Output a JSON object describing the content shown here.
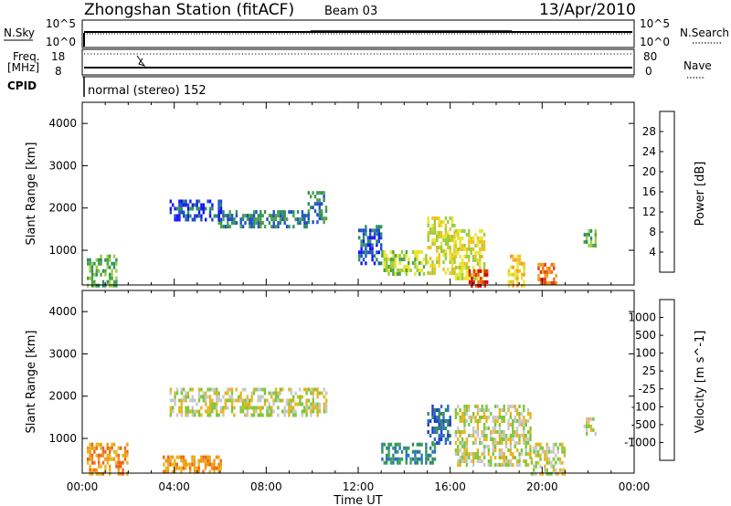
{
  "header": {
    "station": "Zhongshan Station (fitACF)",
    "beam": "Beam 03",
    "date": "13/Apr/2010"
  },
  "aux_panels": {
    "nsky_label": "N.Sky",
    "nsky_ticks": [
      "10^5",
      "10^0"
    ],
    "nsearch_ticks": [
      "10^5",
      "10^0"
    ],
    "nsearch_label": "N.Search",
    "freq_label": "Freq.",
    "freq_unit": "[MHz]",
    "freq_ticks": [
      "18",
      "8"
    ],
    "nave_ticks": [
      "80",
      "0"
    ],
    "nave_label": "Nave",
    "cpid_label": "CPID",
    "cpid_value": "normal (stereo) 152"
  },
  "chart_data": [
    {
      "type": "heatmap",
      "name": "power",
      "ylabel": "Slant Range [km]",
      "ylim": [
        180,
        4500
      ],
      "y_ticks": [
        "1000",
        "2000",
        "3000",
        "4000"
      ],
      "colorbar_label": "Power [dB]",
      "colorbar_ticks": [
        "4",
        "8",
        "12",
        "16",
        "20",
        "24",
        "28"
      ],
      "colorbar_colors": [
        "#1414ff",
        "#2050c8",
        "#2e9060",
        "#4fa046",
        "#9acd3c",
        "#e6e62d",
        "#f0c020",
        "#f09a1e",
        "#f06e14",
        "#e63c0a",
        "#dc0000"
      ],
      "x_ticks": [
        "00:00",
        "04:00",
        "08:00",
        "12:00",
        "16:00",
        "20:00",
        "00:00"
      ],
      "regions": [
        {
          "t0": 5.9,
          "t1": 9.8,
          "r0": 1560,
          "r1": 1950,
          "level": 2
        },
        {
          "t0": 3.8,
          "t1": 6.0,
          "r0": 1750,
          "r1": 2200,
          "level": 1
        },
        {
          "t0": 9.8,
          "t1": 10.6,
          "r0": 1650,
          "r1": 2400,
          "level": 2
        },
        {
          "t0": 13.0,
          "t1": 15.0,
          "r0": 400,
          "r1": 1000,
          "level": 4
        },
        {
          "t0": 15.0,
          "t1": 16.2,
          "r0": 500,
          "r1": 1800,
          "level": 5
        },
        {
          "t0": 16.2,
          "t1": 17.5,
          "r0": 300,
          "r1": 1500,
          "level": 5
        },
        {
          "t0": 16.8,
          "t1": 17.6,
          "r0": 180,
          "r1": 550,
          "level": 9
        },
        {
          "t0": 18.5,
          "t1": 19.2,
          "r0": 200,
          "r1": 900,
          "level": 6
        },
        {
          "t0": 19.8,
          "t1": 20.6,
          "r0": 200,
          "r1": 700,
          "level": 8
        },
        {
          "t0": 21.8,
          "t1": 22.3,
          "r0": 1100,
          "r1": 1500,
          "level": 3
        },
        {
          "t0": 0.2,
          "t1": 1.5,
          "r0": 180,
          "r1": 900,
          "level": 3
        },
        {
          "t0": 12.0,
          "t1": 13.0,
          "r0": 700,
          "r1": 1600,
          "level": 1
        }
      ]
    },
    {
      "type": "heatmap",
      "name": "velocity",
      "ylabel": "Slant Range [km]",
      "ylim": [
        180,
        4500
      ],
      "y_ticks": [
        "1000",
        "2000",
        "3000",
        "4000"
      ],
      "colorbar_label": "Velocity [m s^-1]",
      "colorbar_ticks": [
        "1000",
        "500",
        "100",
        "25",
        "-25",
        "-100",
        "-500",
        "-1000"
      ],
      "colorbar_colors": [
        "#1e3cc8",
        "#2a6ec8",
        "#2e8a60",
        "#3a9e50",
        "#78c83c",
        "#c8c8c8",
        "#e6b41e",
        "#f09614",
        "#f06414",
        "#e63228",
        "#dc0000"
      ],
      "xlabel": "Time UT",
      "x_ticks": [
        "00:00",
        "04:00",
        "08:00",
        "12:00",
        "16:00",
        "20:00",
        "00:00"
      ],
      "regions": [
        {
          "t0": 3.8,
          "t1": 10.6,
          "r0": 1560,
          "r1": 2200,
          "level": 5
        },
        {
          "t0": 13.0,
          "t1": 15.3,
          "r0": 400,
          "r1": 900,
          "level": 2
        },
        {
          "t0": 15.0,
          "t1": 16.0,
          "r0": 900,
          "r1": 1800,
          "level": 1
        },
        {
          "t0": 16.2,
          "t1": 19.5,
          "r0": 400,
          "r1": 1800,
          "level": 5
        },
        {
          "t0": 19.5,
          "t1": 21.0,
          "r0": 200,
          "r1": 900,
          "level": 5
        },
        {
          "t0": 0.2,
          "t1": 2.0,
          "r0": 180,
          "r1": 900,
          "level": 7
        },
        {
          "t0": 3.5,
          "t1": 6.0,
          "r0": 180,
          "r1": 600,
          "level": 7
        },
        {
          "t0": 21.8,
          "t1": 22.3,
          "r0": 1100,
          "r1": 1500,
          "level": 5
        }
      ]
    }
  ]
}
